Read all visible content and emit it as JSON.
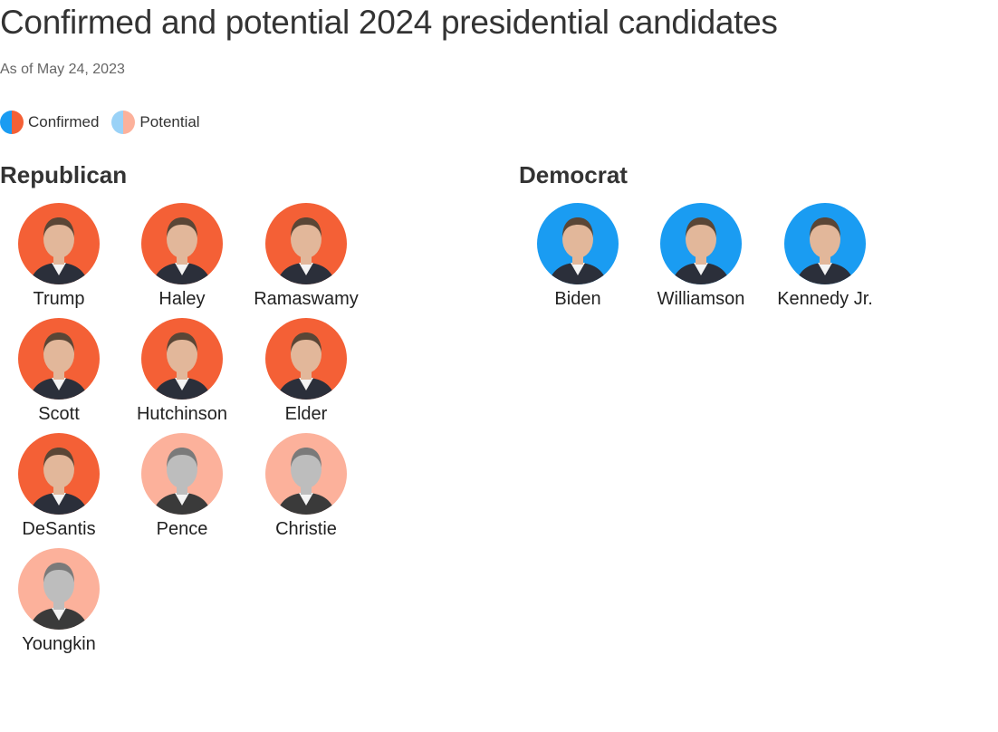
{
  "title": "Confirmed and potential 2024 presidential candidates",
  "subtitle": "As of May 24, 2023",
  "colors": {
    "republican_confirmed": "#f46036",
    "republican_potential": "#fcb19b",
    "democrat_confirmed": "#1a9cf2",
    "democrat_potential": "#9ad2f7"
  },
  "legend": [
    {
      "label": "Confirmed",
      "left": "#1a9cf2",
      "right": "#f46036"
    },
    {
      "label": "Potential",
      "left": "#9ad2f7",
      "right": "#fcb19b"
    }
  ],
  "parties": [
    {
      "name": "Republican",
      "candidates": [
        {
          "name": "Trump",
          "status": "confirmed"
        },
        {
          "name": "Haley",
          "status": "confirmed"
        },
        {
          "name": "Ramaswamy",
          "status": "confirmed"
        },
        {
          "name": "Scott",
          "status": "confirmed"
        },
        {
          "name": "Hutchinson",
          "status": "confirmed"
        },
        {
          "name": "Elder",
          "status": "confirmed"
        },
        {
          "name": "DeSantis",
          "status": "confirmed"
        },
        {
          "name": "Pence",
          "status": "potential"
        },
        {
          "name": "Christie",
          "status": "potential"
        },
        {
          "name": "Youngkin",
          "status": "potential"
        }
      ]
    },
    {
      "name": "Democrat",
      "candidates": [
        {
          "name": "Biden",
          "status": "confirmed"
        },
        {
          "name": "Williamson",
          "status": "confirmed"
        },
        {
          "name": "Kennedy Jr.",
          "status": "confirmed"
        }
      ]
    }
  ]
}
